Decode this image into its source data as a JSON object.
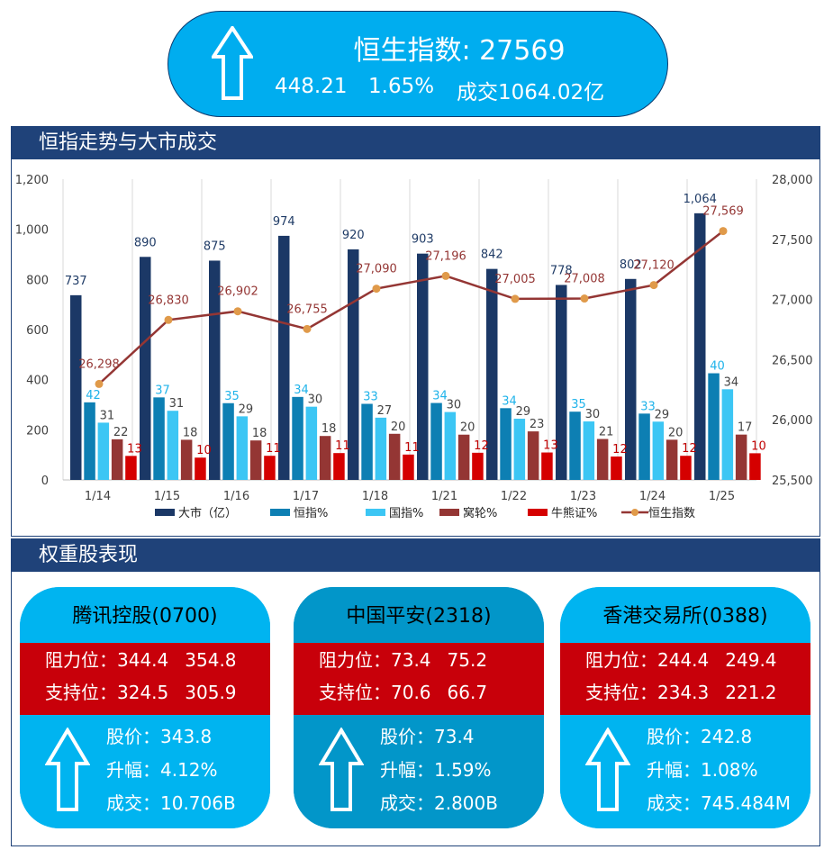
{
  "banner": {
    "title": "恒生指数:  27569",
    "change": "448.21",
    "pct": "1.65%",
    "turnover": "成交1064.02亿"
  },
  "sections": {
    "trend": "恒指走势与大市成交",
    "weights": "权重股表现"
  },
  "chart_data": {
    "type": "bar",
    "categories": [
      "1/14",
      "1/15",
      "1/16",
      "1/17",
      "1/18",
      "1/21",
      "1/22",
      "1/23",
      "1/24",
      "1/25"
    ],
    "series": [
      {
        "name": "大市（亿）",
        "kind": "bar",
        "axis": "left",
        "color": "#1b3866",
        "values": [
          737,
          890,
          875,
          974,
          920,
          903,
          842,
          778,
          802,
          1064
        ]
      },
      {
        "name": "恒指%",
        "kind": "bar",
        "axis": "left",
        "color": "#0d7fb3",
        "labels": [
          42,
          37,
          35,
          34,
          33,
          34,
          34,
          35,
          33,
          40
        ],
        "label_color": "#1fb3ea"
      },
      {
        "name": "国指%",
        "kind": "bar",
        "axis": "left",
        "color": "#3cc6f4",
        "labels": [
          31,
          31,
          29,
          30,
          27,
          30,
          29,
          30,
          29,
          34
        ],
        "label_color": "#444444"
      },
      {
        "name": "窝轮%",
        "kind": "bar",
        "axis": "left",
        "color": "#943634",
        "labels": [
          22,
          18,
          18,
          18,
          20,
          20,
          23,
          21,
          20,
          17
        ],
        "label_color": "#444444"
      },
      {
        "name": "牛熊证%",
        "kind": "bar",
        "axis": "left",
        "color": "#d50000",
        "labels": [
          13,
          10,
          11,
          11,
          11,
          12,
          13,
          12,
          12,
          10
        ],
        "label_color": "#c00000"
      },
      {
        "name": "恒生指数",
        "kind": "line",
        "axis": "right",
        "color": "#943634",
        "marker_color": "#e09a4a",
        "values": [
          26298,
          26830,
          26902,
          26755,
          27090,
          27196,
          27005,
          27008,
          27120,
          27569
        ]
      }
    ],
    "left_axis": {
      "ylim": [
        0,
        1200
      ],
      "ticks": [
        "0",
        "200",
        "400",
        "600",
        "800",
        "1,000",
        "1,200"
      ]
    },
    "right_axis": {
      "ylim": [
        25500,
        28000
      ],
      "ticks": [
        "25,500",
        "26,000",
        "26,500",
        "27,000",
        "27,500",
        "28,000"
      ]
    },
    "grid": "vertical",
    "legend": "bottom"
  },
  "stocks": [
    {
      "name": "腾讯控股(0700)",
      "resist_label": "阻力位：",
      "resist": [
        "344.4",
        "354.8"
      ],
      "support_label": "支持位：",
      "support": [
        "324.5",
        "305.9"
      ],
      "price": "股价：343.8",
      "change": "升幅：4.12%",
      "volume": "成交：10.706B",
      "style": "blue"
    },
    {
      "name": "中国平安(2318)",
      "resist_label": "阻力位：",
      "resist": [
        "73.4",
        "75.2"
      ],
      "support_label": "支持位：",
      "support": [
        "70.6",
        "66.7"
      ],
      "price": "股价：73.4",
      "change": "升幅：1.59%",
      "volume": "成交：2.800B",
      "style": "deep"
    },
    {
      "name": "香港交易所(0388)",
      "resist_label": "阻力位：",
      "resist": [
        "244.4",
        "249.4"
      ],
      "support_label": "支持位：",
      "support": [
        "234.3",
        "221.2"
      ],
      "price": "股价：242.8",
      "change": "升幅：1.08%",
      "volume": "成交：745.484M",
      "style": "blue"
    }
  ],
  "icons": {
    "up": "up-arrow-icon"
  }
}
